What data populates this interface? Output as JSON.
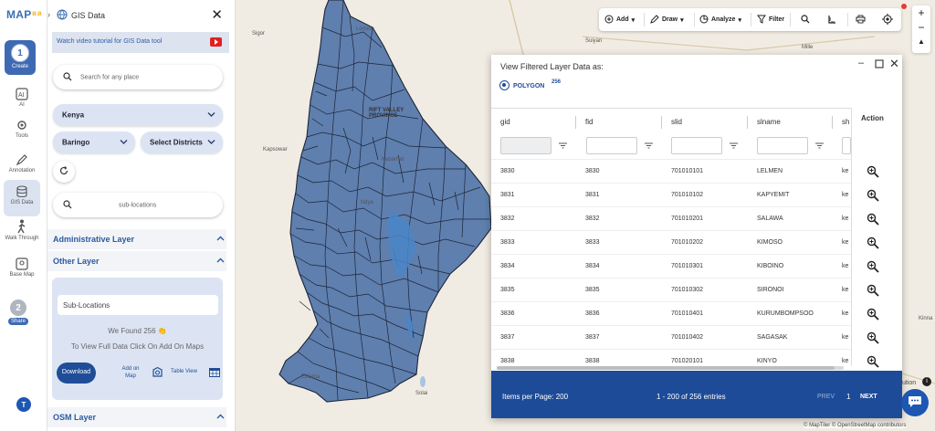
{
  "logo": {
    "main": "MAP",
    "accent": "⁸⁸"
  },
  "rail": {
    "create_step": "1",
    "create_label": "Create",
    "items": [
      {
        "label": "AI"
      },
      {
        "label": "Tools"
      },
      {
        "label": "Annotation"
      },
      {
        "label": "GIS Data"
      },
      {
        "label": "Walk Through"
      },
      {
        "label": "Base Map"
      }
    ],
    "share_step": "2",
    "share_label": "Share",
    "user_initial": "T"
  },
  "panel": {
    "title": "GIS Data",
    "tutorial": "Watch video tutorial for GIS Data tool",
    "search_placeholder": "Search for any place",
    "country": "Kenya",
    "county": "Baringo",
    "districts": "Select Districts",
    "layer_search": "sub-locations",
    "section_admin": "Administrative Layer",
    "section_other": "Other Layer",
    "section_osm": "OSM Layer",
    "card": {
      "input_value": "Sub-Locations",
      "found_text": "We Found  256 👏",
      "hint": "To View Full Data Click On Add On Maps",
      "download": "Download",
      "add_on_map": "Add on Map",
      "table_view": "Table View"
    }
  },
  "toolbar": {
    "add": "Add",
    "draw": "Draw",
    "analyze": "Analyze",
    "filter": "Filter"
  },
  "zoom": {
    "plus": "+",
    "minus": "−",
    "north": "▲"
  },
  "map_labels": [
    {
      "text": "Sigor"
    },
    {
      "text": "Lomelo"
    },
    {
      "text": "Suiyan"
    },
    {
      "text": "Mille"
    },
    {
      "text": "Kapsowar"
    },
    {
      "text": "RIFT VALLEY PROVINCE"
    },
    {
      "text": "Kinna"
    },
    {
      "text": "Eldama"
    },
    {
      "text": "Solai"
    },
    {
      "text": "Kabarnet"
    },
    {
      "text": "Yatya"
    }
  ],
  "dialog": {
    "title": "View Filtered Layer Data as:",
    "geom_type": "POLYGON",
    "geom_count": "256",
    "columns": [
      "gid",
      "fid",
      "slid",
      "slname",
      "sh"
    ],
    "action_header": "Action",
    "rows": [
      {
        "gid": "3830",
        "fid": "3830",
        "slid": "701010101",
        "slname": "LELMEN",
        "sh": "ke"
      },
      {
        "gid": "3831",
        "fid": "3831",
        "slid": "701010102",
        "slname": "KAPYEMIT",
        "sh": "ke"
      },
      {
        "gid": "3832",
        "fid": "3832",
        "slid": "701010201",
        "slname": "SALAWA",
        "sh": "ke"
      },
      {
        "gid": "3833",
        "fid": "3833",
        "slid": "701010202",
        "slname": "KIMOSO",
        "sh": "ke"
      },
      {
        "gid": "3834",
        "fid": "3834",
        "slid": "701010301",
        "slname": "KIBOINO",
        "sh": "ke"
      },
      {
        "gid": "3835",
        "fid": "3835",
        "slid": "701010302",
        "slname": "SIRONOI",
        "sh": "ke"
      },
      {
        "gid": "3836",
        "fid": "3836",
        "slid": "701010401",
        "slname": "KURUMBOMPSOO",
        "sh": "ke"
      },
      {
        "gid": "3837",
        "fid": "3837",
        "slid": "701010402",
        "slname": "SAGASAK",
        "sh": "ke"
      },
      {
        "gid": "3838",
        "fid": "3838",
        "slid": "701020101",
        "slname": "KINYO",
        "sh": "ke"
      }
    ],
    "footer": {
      "per_page": "Items per Page: 200",
      "entries": "1 - 200 of 256 entries",
      "prev": "PREV",
      "page": "1",
      "next": "NEXT"
    }
  },
  "attribution": "© MapTiler © OpenStreetMap contributors",
  "attribution_partial": "ution",
  "colors": {
    "accent": "#3e6ab3",
    "polygon_fill": "#5f7fae",
    "highlight": "#4a86c8",
    "footer": "#1d4b98"
  }
}
